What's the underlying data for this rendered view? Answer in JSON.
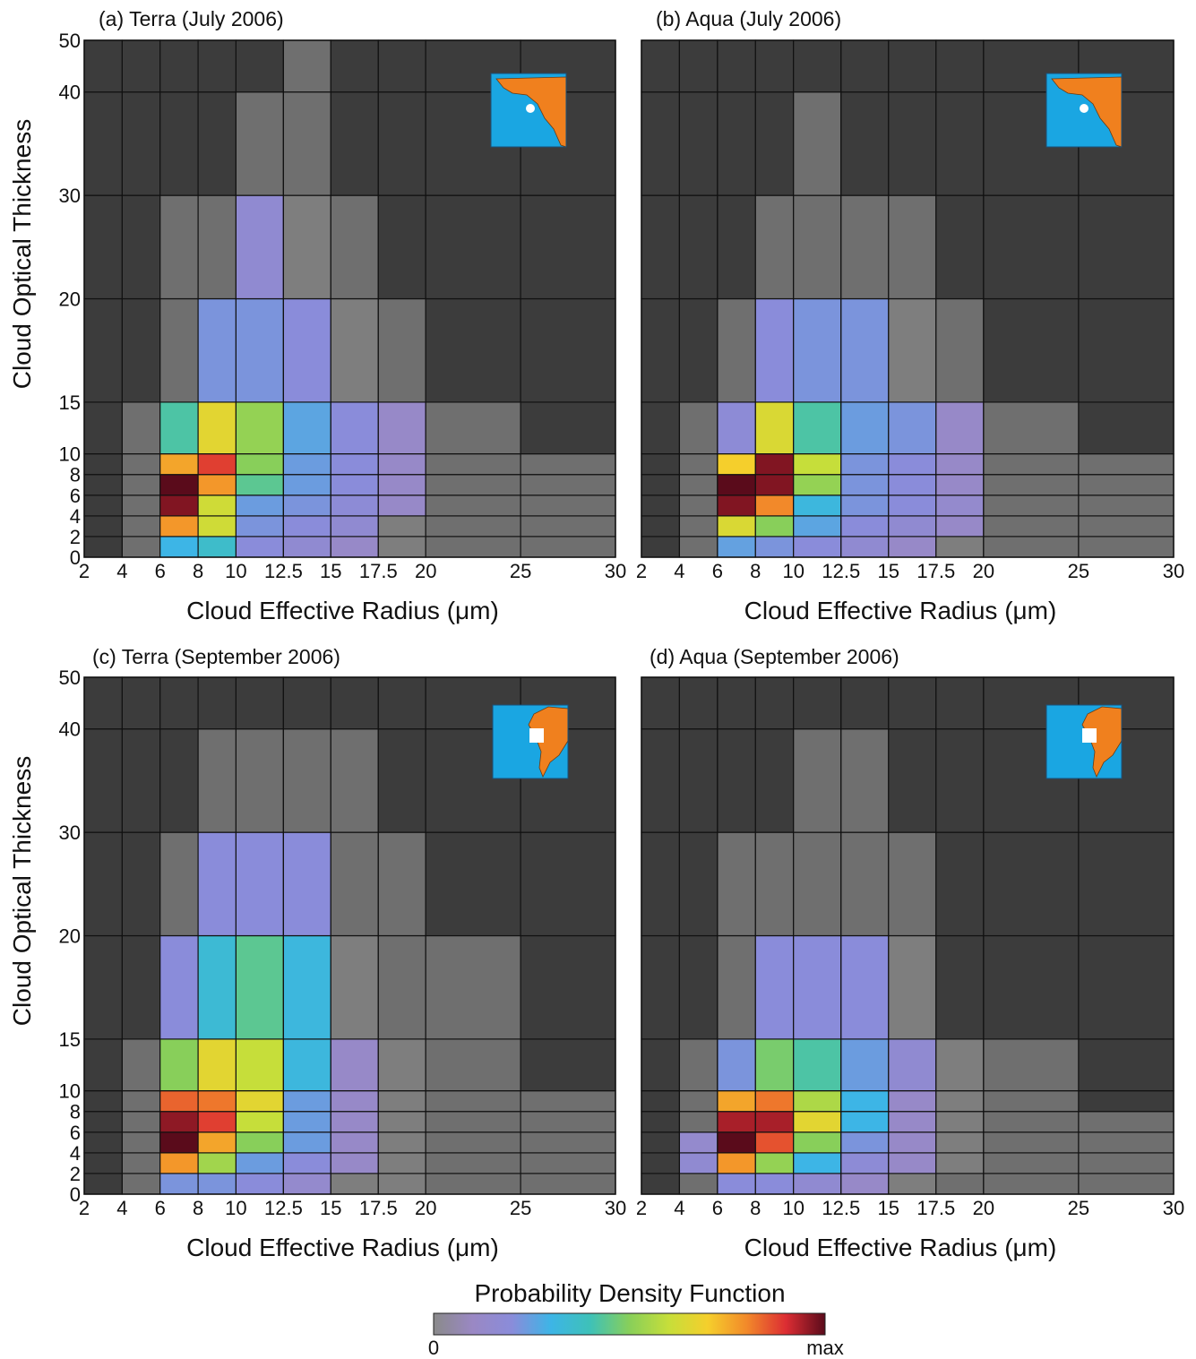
{
  "chart_data": [
    {
      "type": "heatmap",
      "title": "(a) Terra (July 2006)",
      "xlabel": "Cloud Effective Radius (μm)",
      "ylabel": "Cloud Optical Thickness",
      "x_bin_edges": [
        2,
        4,
        6,
        8,
        10,
        12.5,
        15,
        17.5,
        20,
        25,
        30
      ],
      "y_bin_edges": [
        0,
        2,
        4,
        6,
        8,
        10,
        15,
        20,
        30,
        40,
        50
      ],
      "x_tick_labels": [
        "2",
        "4",
        "6",
        "8",
        "10",
        "12.5",
        "15",
        "17.5",
        "20",
        "25",
        "30"
      ],
      "y_tick_labels": [
        "0",
        "2",
        "4",
        "6",
        "8",
        "10",
        "15",
        "20",
        "30",
        "40",
        "50"
      ],
      "value_note": "relative PDF level per cell, 0 = grey, 1 = max (dark red); rows listed from optical thickness 0-2 upward, columns from radius 2-4 rightward",
      "values": [
        [
          0.02,
          0.05,
          0.3,
          0.36,
          0.2,
          0.16,
          0.12,
          0.08,
          0.06,
          0.06
        ],
        [
          0.02,
          0.06,
          0.78,
          0.62,
          0.22,
          0.2,
          0.16,
          0.11,
          0.07,
          0.06
        ],
        [
          0.02,
          0.06,
          0.97,
          0.62,
          0.24,
          0.22,
          0.18,
          0.12,
          0.07,
          0.06
        ],
        [
          0.02,
          0.06,
          1.0,
          0.78,
          0.44,
          0.24,
          0.2,
          0.12,
          0.07,
          0.06
        ],
        [
          0.02,
          0.06,
          0.76,
          0.88,
          0.5,
          0.24,
          0.2,
          0.12,
          0.07,
          0.06
        ],
        [
          0.03,
          0.06,
          0.42,
          0.66,
          0.52,
          0.26,
          0.2,
          0.12,
          0.07,
          0.03
        ],
        [
          0.03,
          0.04,
          0.07,
          0.22,
          0.22,
          0.2,
          0.1,
          0.07,
          0.03,
          0.03
        ],
        [
          0.02,
          0.03,
          0.06,
          0.07,
          0.16,
          0.08,
          0.07,
          0.03,
          0.02,
          0.02
        ],
        [
          0.02,
          0.02,
          0.03,
          0.03,
          0.07,
          0.07,
          0.03,
          0.02,
          0.02,
          0.02
        ],
        [
          0.02,
          0.02,
          0.03,
          0.03,
          0.02,
          0.07,
          0.02,
          0.02,
          0.02,
          0.02
        ]
      ]
    },
    {
      "type": "heatmap",
      "title": "(b) Aqua (July 2006)",
      "xlabel": "Cloud Effective Radius (μm)",
      "ylabel": "",
      "x_bin_edges": [
        2,
        4,
        6,
        8,
        10,
        12.5,
        15,
        17.5,
        20,
        25,
        30
      ],
      "y_bin_edges": [
        0,
        2,
        4,
        6,
        8,
        10,
        15,
        20,
        30,
        40,
        50
      ],
      "x_tick_labels": [
        "2",
        "4",
        "6",
        "8",
        "10",
        "12.5",
        "15",
        "17.5",
        "20",
        "25",
        "30"
      ],
      "y_tick_labels": [],
      "values": [
        [
          0.02,
          0.05,
          0.25,
          0.22,
          0.2,
          0.16,
          0.12,
          0.08,
          0.06,
          0.06
        ],
        [
          0.02,
          0.06,
          0.64,
          0.5,
          0.26,
          0.2,
          0.16,
          0.12,
          0.07,
          0.06
        ],
        [
          0.02,
          0.06,
          0.97,
          0.8,
          0.32,
          0.22,
          0.2,
          0.14,
          0.07,
          0.06
        ],
        [
          0.02,
          0.06,
          1.0,
          0.97,
          0.52,
          0.22,
          0.2,
          0.12,
          0.07,
          0.06
        ],
        [
          0.02,
          0.06,
          0.7,
          0.97,
          0.6,
          0.22,
          0.2,
          0.12,
          0.07,
          0.06
        ],
        [
          0.02,
          0.06,
          0.18,
          0.64,
          0.42,
          0.24,
          0.22,
          0.12,
          0.07,
          0.03
        ],
        [
          0.02,
          0.03,
          0.07,
          0.2,
          0.22,
          0.22,
          0.1,
          0.07,
          0.03,
          0.03
        ],
        [
          0.02,
          0.03,
          0.03,
          0.06,
          0.07,
          0.07,
          0.07,
          0.03,
          0.02,
          0.02
        ],
        [
          0.02,
          0.02,
          0.03,
          0.03,
          0.06,
          0.03,
          0.02,
          0.02,
          0.02,
          0.02
        ],
        [
          0.02,
          0.02,
          0.02,
          0.02,
          0.03,
          0.03,
          0.02,
          0.02,
          0.02,
          0.02
        ]
      ]
    },
    {
      "type": "heatmap",
      "title": "(c) Terra (September 2006)",
      "xlabel": "Cloud Effective Radius (μm)",
      "ylabel": "Cloud Optical Thickness",
      "x_bin_edges": [
        2,
        4,
        6,
        8,
        10,
        12.5,
        15,
        17.5,
        20,
        25,
        30
      ],
      "y_bin_edges": [
        0,
        2,
        4,
        6,
        8,
        10,
        15,
        20,
        30,
        40,
        50
      ],
      "x_tick_labels": [
        "2",
        "4",
        "6",
        "8",
        "10",
        "12.5",
        "15",
        "17.5",
        "20",
        "25",
        "30"
      ],
      "y_tick_labels": [
        "0",
        "2",
        "4",
        "6",
        "8",
        "10",
        "15",
        "20",
        "30",
        "40",
        "50"
      ],
      "values": [
        [
          0.03,
          0.05,
          0.22,
          0.22,
          0.2,
          0.14,
          0.1,
          0.08,
          0.06,
          0.06
        ],
        [
          0.03,
          0.06,
          0.78,
          0.54,
          0.24,
          0.2,
          0.12,
          0.1,
          0.07,
          0.06
        ],
        [
          0.03,
          0.06,
          1.0,
          0.76,
          0.5,
          0.24,
          0.12,
          0.1,
          0.07,
          0.06
        ],
        [
          0.03,
          0.06,
          0.96,
          0.88,
          0.6,
          0.24,
          0.12,
          0.1,
          0.07,
          0.06
        ],
        [
          0.03,
          0.06,
          0.84,
          0.82,
          0.66,
          0.24,
          0.12,
          0.1,
          0.07,
          0.06
        ],
        [
          0.03,
          0.06,
          0.5,
          0.66,
          0.6,
          0.32,
          0.12,
          0.1,
          0.07,
          0.03
        ],
        [
          0.03,
          0.03,
          0.2,
          0.34,
          0.44,
          0.32,
          0.1,
          0.07,
          0.07,
          0.03
        ],
        [
          0.02,
          0.03,
          0.07,
          0.2,
          0.2,
          0.2,
          0.07,
          0.07,
          0.03,
          0.03
        ],
        [
          0.02,
          0.02,
          0.03,
          0.07,
          0.07,
          0.07,
          0.07,
          0.03,
          0.02,
          0.02
        ],
        [
          0.02,
          0.02,
          0.02,
          0.03,
          0.04,
          0.04,
          0.02,
          0.02,
          0.02,
          0.02
        ]
      ]
    },
    {
      "type": "heatmap",
      "title": "(d) Aqua (September 2006)",
      "xlabel": "Cloud Effective Radius (μm)",
      "ylabel": "",
      "x_bin_edges": [
        2,
        4,
        6,
        8,
        10,
        12.5,
        15,
        17.5,
        20,
        25,
        30
      ],
      "y_bin_edges": [
        0,
        2,
        4,
        6,
        8,
        10,
        15,
        20,
        30,
        40,
        50
      ],
      "x_tick_labels": [
        "2",
        "4",
        "6",
        "8",
        "10",
        "12.5",
        "15",
        "17.5",
        "20",
        "25",
        "30"
      ],
      "y_tick_labels": [],
      "values": [
        [
          0.02,
          0.05,
          0.2,
          0.2,
          0.16,
          0.12,
          0.08,
          0.07,
          0.06,
          0.06
        ],
        [
          0.02,
          0.16,
          0.78,
          0.52,
          0.3,
          0.18,
          0.12,
          0.08,
          0.07,
          0.06
        ],
        [
          0.02,
          0.14,
          1.0,
          0.86,
          0.5,
          0.22,
          0.12,
          0.08,
          0.07,
          0.06
        ],
        [
          0.02,
          0.06,
          0.94,
          0.94,
          0.66,
          0.3,
          0.12,
          0.08,
          0.07,
          0.06
        ],
        [
          0.02,
          0.06,
          0.76,
          0.82,
          0.56,
          0.3,
          0.12,
          0.08,
          0.07,
          0.03
        ],
        [
          0.02,
          0.06,
          0.22,
          0.48,
          0.42,
          0.24,
          0.16,
          0.08,
          0.07,
          0.03
        ],
        [
          0.02,
          0.03,
          0.07,
          0.2,
          0.2,
          0.2,
          0.08,
          0.03,
          0.03,
          0.03
        ],
        [
          0.02,
          0.03,
          0.07,
          0.07,
          0.07,
          0.07,
          0.07,
          0.03,
          0.02,
          0.02
        ],
        [
          0.02,
          0.02,
          0.03,
          0.03,
          0.07,
          0.07,
          0.03,
          0.02,
          0.02,
          0.02
        ],
        [
          0.02,
          0.02,
          0.02,
          0.03,
          0.03,
          0.03,
          0.02,
          0.02,
          0.02,
          0.02
        ]
      ]
    }
  ],
  "colorbar": {
    "title": "Probability Density Function",
    "min_label": "0",
    "max_label": "max",
    "colors": [
      "#8a8a8a",
      "#9a88c4",
      "#8a8cda",
      "#3db5e6",
      "#3ec1b8",
      "#88cf5a",
      "#c6de3a",
      "#f5cf2c",
      "#f2892a",
      "#dc2d33",
      "#5a0b1b"
    ]
  },
  "colors": {
    "background": "#ffffff",
    "cell_empty": "#3c3c3c",
    "grid_lines": "#111111",
    "inset_ocean": "#1aa6e2",
    "inset_land": "#f0801e",
    "inset_marker": "#ffffff"
  }
}
